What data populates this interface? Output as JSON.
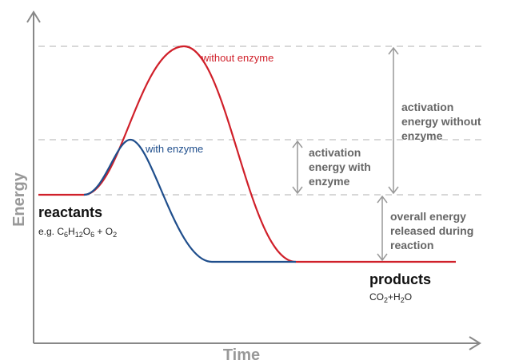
{
  "axes": {
    "y_label": "Energy",
    "x_label": "Time"
  },
  "curves": {
    "without_enzyme": "without enzyme",
    "with_enzyme": "with enzyme"
  },
  "annotations": {
    "activation_without": [
      "activation",
      "energy without",
      "enzyme"
    ],
    "activation_with": [
      "activation",
      "energy with",
      "enzyme"
    ],
    "overall_released": [
      "overall energy",
      "released during",
      "reaction"
    ]
  },
  "reactants": {
    "label": "reactants",
    "formula": [
      "e.g. C",
      "6",
      "H",
      "12",
      "O",
      "6",
      " + O",
      "2"
    ]
  },
  "products": {
    "label": "products",
    "formula": [
      "CO",
      "2",
      "+H",
      "2",
      "O"
    ]
  }
}
